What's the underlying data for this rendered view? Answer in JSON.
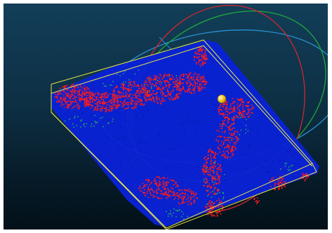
{
  "colors": {
    "background_top": "#123e58",
    "background_bottom": "#021018",
    "ground_points": "#0a22d8",
    "vegetation_points": "#ff1a1a",
    "transition_points": "#22c94a",
    "bounding_box": "#e6e64a",
    "rotation_ring_x": "#d0262e",
    "rotation_ring_y": "#1fa83c",
    "rotation_ring_z": "#2a8fd0",
    "pivot": "#f2c418"
  },
  "icons": {
    "trackball": "rotation-trackball-icon",
    "pivot": "pivot-point-icon"
  }
}
